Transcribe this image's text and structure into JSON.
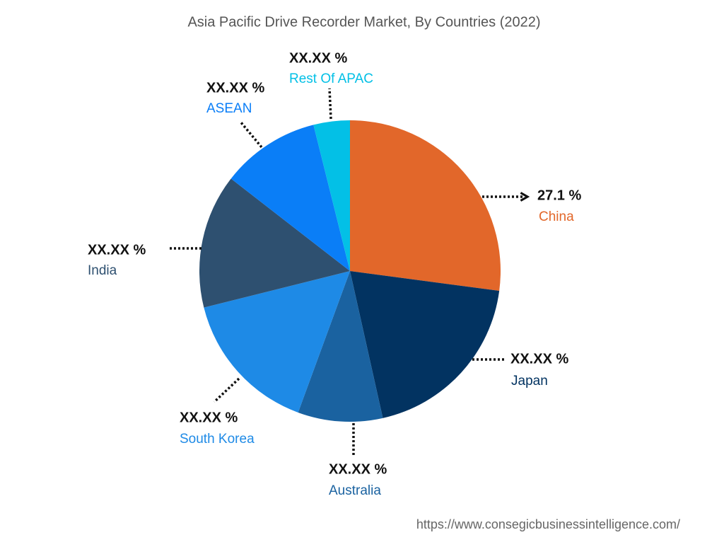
{
  "chart_data": {
    "type": "pie",
    "title": "Asia Pacific Drive Recorder Market, By Countries (2022)",
    "categories": [
      "China",
      "Japan",
      "Australia",
      "South Korea",
      "India",
      "ASEAN",
      "Rest Of APAC"
    ],
    "values": [
      27.1,
      19.4,
      9.1,
      15.5,
      14.4,
      10.6,
      3.9
    ],
    "value_labels": [
      "27.1 %",
      "XX.XX %",
      "XX.XX %",
      "XX.XX %",
      "XX.XX %",
      "XX.XX %",
      "XX.XX %"
    ],
    "colors": [
      "#e2672a",
      "#023361",
      "#1a62a0",
      "#1e8ae6",
      "#2e5070",
      "#0a7ef7",
      "#03c0e6"
    ],
    "source": "https://www.consegicbusinessintelligence.com/"
  }
}
